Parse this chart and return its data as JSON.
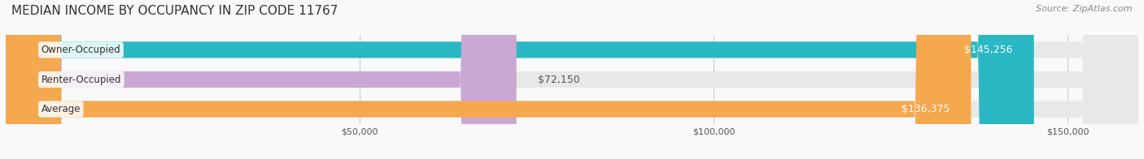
{
  "title": "MEDIAN INCOME BY OCCUPANCY IN ZIP CODE 11767",
  "source": "Source: ZipAtlas.com",
  "categories": [
    "Owner-Occupied",
    "Renter-Occupied",
    "Average"
  ],
  "values": [
    145256,
    72150,
    136375
  ],
  "bar_colors": [
    "#29b8c4",
    "#c9a8d4",
    "#f5a84e"
  ],
  "label_colors": [
    "#ffffff",
    "#555555",
    "#ffffff"
  ],
  "value_labels": [
    "$145,256",
    "$72,150",
    "$136,375"
  ],
  "xlim": [
    0,
    160000
  ],
  "xticks": [
    50000,
    100000,
    150000
  ],
  "xtick_labels": [
    "$50,000",
    "$100,000",
    "$150,000"
  ],
  "background_color": "#f5f5f5",
  "bar_background_color": "#e8e8e8",
  "title_fontsize": 11,
  "source_fontsize": 8,
  "bar_height": 0.55,
  "bar_label_fontsize": 8.5,
  "value_label_fontsize": 9,
  "tick_fontsize": 8
}
